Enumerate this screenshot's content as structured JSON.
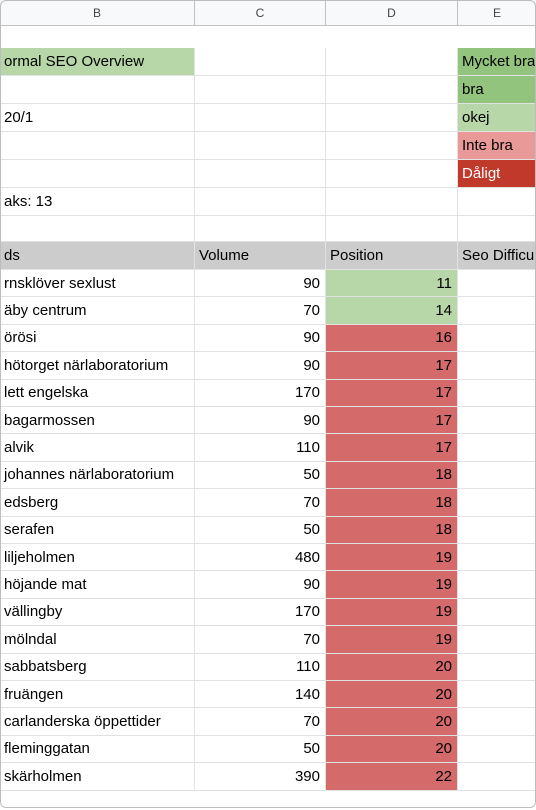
{
  "columns": [
    "B",
    "C",
    "D",
    "E"
  ],
  "top": {
    "title": "ormal SEO Overview",
    "date": "20/1",
    "links": "aks: 13"
  },
  "legend": [
    {
      "label": "Mycket bra",
      "color": "#93c47d"
    },
    {
      "label": "bra",
      "color": "#93c47d"
    },
    {
      "label": "okej",
      "color": "#b7d7a8"
    },
    {
      "label": "Inte bra",
      "color": "#ea9999"
    },
    {
      "label": "Dåligt",
      "color": "#c0392b"
    }
  ],
  "table": {
    "headers": [
      "ds",
      "Volume",
      "Position",
      "Seo Difficulty"
    ],
    "rows": [
      {
        "kw": "rnsklöver sexlust",
        "vol": "90",
        "pos": "11",
        "status": "good"
      },
      {
        "kw": "äby centrum",
        "vol": "70",
        "pos": "14",
        "status": "good"
      },
      {
        "kw": "örösi",
        "vol": "90",
        "pos": "16",
        "status": "bad"
      },
      {
        "kw": "hötorget närlaboratorium",
        "vol": "90",
        "pos": "17",
        "status": "bad"
      },
      {
        "kw": "lett engelska",
        "vol": "170",
        "pos": "17",
        "status": "bad"
      },
      {
        "kw": "bagarmossen",
        "vol": "90",
        "pos": "17",
        "status": "bad"
      },
      {
        "kw": "alvik",
        "vol": "110",
        "pos": "17",
        "status": "bad"
      },
      {
        "kw": "johannes närlaboratorium",
        "vol": "50",
        "pos": "18",
        "status": "bad"
      },
      {
        "kw": "edsberg",
        "vol": "70",
        "pos": "18",
        "status": "bad"
      },
      {
        "kw": "serafen",
        "vol": "50",
        "pos": "18",
        "status": "bad"
      },
      {
        "kw": "liljeholmen",
        "vol": "480",
        "pos": "19",
        "status": "bad"
      },
      {
        "kw": "höjande mat",
        "vol": "90",
        "pos": "19",
        "status": "bad"
      },
      {
        "kw": "vällingby",
        "vol": "170",
        "pos": "19",
        "status": "bad"
      },
      {
        "kw": "mölndal",
        "vol": "70",
        "pos": "19",
        "status": "bad"
      },
      {
        "kw": "sabbatsberg",
        "vol": "110",
        "pos": "20",
        "status": "bad"
      },
      {
        "kw": "fruängen",
        "vol": "140",
        "pos": "20",
        "status": "bad"
      },
      {
        "kw": "carlanderska öppettider",
        "vol": "70",
        "pos": "20",
        "status": "bad"
      },
      {
        "kw": "fleminggatan",
        "vol": "50",
        "pos": "20",
        "status": "bad"
      },
      {
        "kw": "skärholmen",
        "vol": "390",
        "pos": "22",
        "status": "bad"
      }
    ]
  }
}
